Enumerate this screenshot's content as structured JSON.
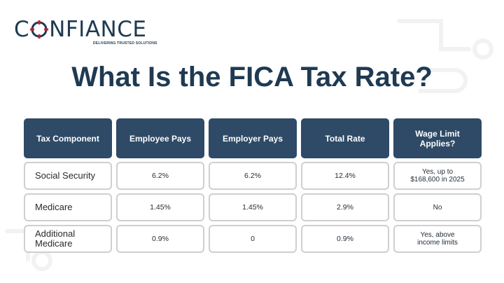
{
  "brand": {
    "name_left": "C",
    "name_right": "NFIANCE",
    "tagline": "DELIVERING TRUSTED SOLUTIONS",
    "colors": {
      "navy": "#1f3a52",
      "accent_red": "#c8202f",
      "header_bg": "#2e4a66"
    }
  },
  "title": "What Is the FICA Tax Rate?",
  "table": {
    "headers": [
      "Tax Component",
      "Employee Pays",
      "Employer Pays",
      "Total Rate",
      "Wage Limit Applies?"
    ],
    "rows": [
      [
        "Social Security",
        "6.2%",
        "6.2%",
        "12.4%",
        "Yes, up to $168,600 in 2025"
      ],
      [
        "Medicare",
        "1.45%",
        "1.45%",
        "2.9%",
        "No"
      ],
      [
        "Additional Medicare",
        "0.9%",
        "0",
        "0.9%",
        "Yes, above income limits"
      ]
    ]
  }
}
